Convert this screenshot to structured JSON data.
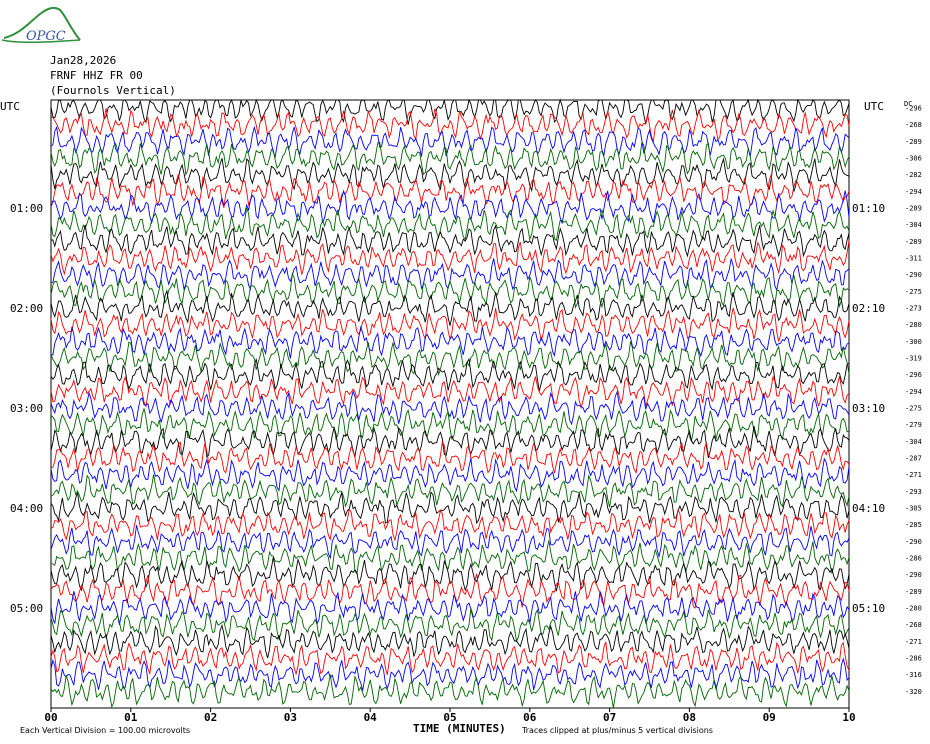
{
  "header": {
    "logo_text": "OPGC",
    "date": "Jan28,2026",
    "station": "FRNF HHZ FR 00",
    "location": "(Fournols Vertical)"
  },
  "labels": {
    "left_utc": "UTC",
    "right_utc": "UTC",
    "dc_header": "DC",
    "x_axis_title": "TIME (MINUTES)",
    "footer_left": "Each Vertical Division =  100.00 microvolts",
    "footer_right": "Traces clipped at plus/minus 5 vertical divisions"
  },
  "colors": {
    "trace_cycle": [
      "#000000",
      "#ff0000",
      "#0000ff",
      "#006400"
    ],
    "logo": "#2f8f3a",
    "logo_text": "#3355aa"
  },
  "chart_data": {
    "type": "line",
    "description_free": true,
    "x_axis": {
      "min": 0,
      "max": 10,
      "ticks": [
        "00",
        "01",
        "02",
        "03",
        "04",
        "05",
        "06",
        "07",
        "08",
        "09",
        "10"
      ]
    },
    "left_hour_labels": [
      {
        "label": "01:00",
        "row": 6
      },
      {
        "label": "02:00",
        "row": 12
      },
      {
        "label": "03:00",
        "row": 18
      },
      {
        "label": "04:00",
        "row": 24
      },
      {
        "label": "05:00",
        "row": 30
      }
    ],
    "right_hour_labels": [
      {
        "label": "01:10",
        "row": 6
      },
      {
        "label": "02:10",
        "row": 12
      },
      {
        "label": "03:10",
        "row": 18
      },
      {
        "label": "04:10",
        "row": 24
      },
      {
        "label": "05:10",
        "row": 30
      }
    ],
    "rows": 36,
    "dc_offsets": [
      -296,
      -268,
      -289,
      -306,
      -282,
      -294,
      -289,
      -304,
      -289,
      -311,
      -290,
      -275,
      -273,
      -280,
      -300,
      -319,
      -296,
      -294,
      -275,
      -279,
      -304,
      -287,
      -271,
      -293,
      -305,
      -285,
      -290,
      -286,
      -290,
      -289,
      -280,
      -268,
      -271,
      -286,
      -316,
      -320
    ],
    "dc_printed_every": 1
  }
}
